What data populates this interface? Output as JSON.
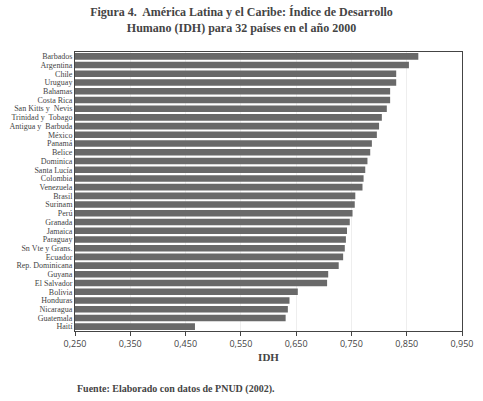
{
  "chart_data": {
    "type": "bar",
    "orientation": "horizontal",
    "title": "Figura 4.  América Latina y el Caribe: Índice de Desarrollo\nHumano (IDH) para 32 países en el año 2000",
    "xlabel": "IDH",
    "annotations": [
      "Fuente: Elaborado con datos de PNUD (2002)."
    ],
    "categories": [
      "Barbados",
      "Argentina",
      "Chile",
      "Uruguay",
      "Bahamas",
      "Costa Rica",
      "San Kitts y  Nevis",
      "Trinidad y  Tobago",
      "Antigua y  Barbuda",
      "México",
      "Panamá",
      "Belice",
      "Dominica",
      "Santa Lucía",
      "Colombia",
      "Venezuela",
      "Brasil",
      "Surinam",
      "Perú",
      "Granada",
      "Jamaica",
      "Paraguay",
      "Sn Vte y Grans.",
      "Ecuador",
      "Rep. Dominicana",
      "Guyana",
      "El Salvador",
      "Bolivia",
      "Honduras",
      "Nicaragua",
      "Guatemala",
      "Haití"
    ],
    "values": [
      0.871,
      0.854,
      0.831,
      0.831,
      0.82,
      0.82,
      0.814,
      0.805,
      0.8,
      0.796,
      0.787,
      0.784,
      0.779,
      0.775,
      0.772,
      0.77,
      0.757,
      0.756,
      0.752,
      0.747,
      0.742,
      0.74,
      0.738,
      0.735,
      0.727,
      0.708,
      0.706,
      0.653,
      0.638,
      0.635,
      0.631,
      0.467
    ],
    "color": "#696969",
    "xlim": [
      0.25,
      0.95
    ],
    "xticks": [
      {
        "value": 0.25,
        "label": "0,250"
      },
      {
        "value": 0.35,
        "label": "0,350"
      },
      {
        "value": 0.45,
        "label": "0,450"
      },
      {
        "value": 0.55,
        "label": "0,550"
      },
      {
        "value": 0.65,
        "label": "0,650"
      },
      {
        "value": 0.75,
        "label": "0,750"
      },
      {
        "value": 0.85,
        "label": "0,850"
      },
      {
        "value": 0.95,
        "label": "0,950"
      }
    ],
    "grid": true
  }
}
